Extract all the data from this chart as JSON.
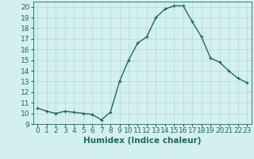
{
  "x": [
    0,
    1,
    2,
    3,
    4,
    5,
    6,
    7,
    8,
    9,
    10,
    11,
    12,
    13,
    14,
    15,
    16,
    17,
    18,
    19,
    20,
    21,
    22,
    23
  ],
  "y": [
    10.5,
    10.2,
    10.0,
    10.2,
    10.1,
    10.0,
    9.9,
    9.4,
    10.1,
    13.0,
    15.0,
    16.6,
    17.2,
    19.0,
    19.8,
    20.1,
    20.1,
    18.6,
    17.2,
    15.2,
    14.8,
    14.0,
    13.3,
    12.9
  ],
  "line_color": "#1a6b5a",
  "marker": "+",
  "background_color": "#d4f0ee",
  "grid_color": "#b8dcd8",
  "xlabel": "Humidex (Indice chaleur)",
  "ylim": [
    9,
    20.5
  ],
  "xlim": [
    -0.5,
    23.5
  ],
  "yticks": [
    9,
    10,
    11,
    12,
    13,
    14,
    15,
    16,
    17,
    18,
    19,
    20
  ],
  "xticks": [
    0,
    1,
    2,
    3,
    4,
    5,
    6,
    7,
    8,
    9,
    10,
    11,
    12,
    13,
    14,
    15,
    16,
    17,
    18,
    19,
    20,
    21,
    22,
    23
  ],
  "tick_fontsize": 6.5,
  "xlabel_fontsize": 7.5,
  "linewidth": 1.0,
  "marker_size": 3.5
}
